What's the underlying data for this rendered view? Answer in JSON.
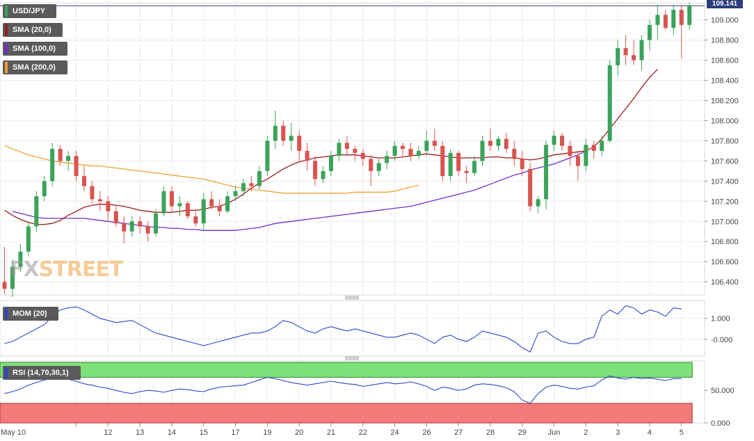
{
  "chart_data": [
    {
      "type": "candlestick",
      "symbol": "USD/JPY",
      "last_price": "109.141",
      "y_ticks": [
        "109.000",
        "108.800",
        "108.600",
        "108.400",
        "108.200",
        "108.000",
        "107.800",
        "107.600",
        "107.400",
        "107.200",
        "107.000",
        "106.800",
        "106.600",
        "106.400"
      ],
      "ylim": [
        106.27,
        109.17
      ],
      "x_tick_labels": [
        "May 10",
        "12",
        "13",
        "14",
        "15",
        "17",
        "19",
        "20",
        "21",
        "22",
        "24",
        "26",
        "27",
        "28",
        "29",
        "Jun",
        "2",
        "3",
        "4",
        "5"
      ],
      "x_tick_positions": [
        9,
        13,
        17,
        21,
        25,
        29,
        33,
        37,
        41,
        45,
        49,
        53,
        57,
        61,
        65,
        69,
        73,
        77,
        81,
        85
      ],
      "indicators": [
        "SMA (20,0)",
        "SMA (100,0)",
        "SMA (200,0)"
      ],
      "colors": {
        "up": "#3aa35a",
        "down": "#d9534f",
        "sma20": "#9b1b1b",
        "sma100": "#6b2fc8",
        "sma200": "#f0a030",
        "last_price_line": "#2c3e7a"
      },
      "candles": [
        [
          106.4,
          106.75,
          106.28,
          106.33
        ],
        [
          106.33,
          106.62,
          106.25,
          106.55
        ],
        [
          106.55,
          106.78,
          106.5,
          106.7
        ],
        [
          106.7,
          107.0,
          106.65,
          106.95
        ],
        [
          106.95,
          107.3,
          106.9,
          107.25
        ],
        [
          107.25,
          107.45,
          107.2,
          107.4
        ],
        [
          107.4,
          107.78,
          107.35,
          107.72
        ],
        [
          107.72,
          107.76,
          107.55,
          107.6
        ],
        [
          107.6,
          107.7,
          107.5,
          107.65
        ],
        [
          107.65,
          107.7,
          107.4,
          107.45
        ],
        [
          107.45,
          107.55,
          107.3,
          107.35
        ],
        [
          107.35,
          107.4,
          107.18,
          107.22
        ],
        [
          107.22,
          107.3,
          107.1,
          107.2
        ],
        [
          107.2,
          107.25,
          107.0,
          107.1
        ],
        [
          107.1,
          107.15,
          106.95,
          106.98
        ],
        [
          106.98,
          107.05,
          106.78,
          106.9
        ],
        [
          106.9,
          107.05,
          106.85,
          107.0
        ],
        [
          107.0,
          107.05,
          106.88,
          106.95
        ],
        [
          106.95,
          107.0,
          106.8,
          106.88
        ],
        [
          106.88,
          107.12,
          106.85,
          107.08
        ],
        [
          107.08,
          107.35,
          107.05,
          107.3
        ],
        [
          107.3,
          107.35,
          107.1,
          107.15
        ],
        [
          107.15,
          107.25,
          107.05,
          107.18
        ],
        [
          107.18,
          107.2,
          107.02,
          107.05
        ],
        [
          107.05,
          107.1,
          106.95,
          106.98
        ],
        [
          106.98,
          107.28,
          106.9,
          107.22
        ],
        [
          107.22,
          107.3,
          107.12,
          107.15
        ],
        [
          107.15,
          107.22,
          107.05,
          107.1
        ],
        [
          107.1,
          107.3,
          107.08,
          107.25
        ],
        [
          107.25,
          107.35,
          107.2,
          107.3
        ],
        [
          107.3,
          107.42,
          107.25,
          107.38
        ],
        [
          107.38,
          107.45,
          107.3,
          107.35
        ],
        [
          107.35,
          107.55,
          107.32,
          107.5
        ],
        [
          107.5,
          107.85,
          107.45,
          107.8
        ],
        [
          107.8,
          108.1,
          107.72,
          107.95
        ],
        [
          107.95,
          108.0,
          107.75,
          107.8
        ],
        [
          107.8,
          107.98,
          107.7,
          107.85
        ],
        [
          107.85,
          107.9,
          107.6,
          107.7
        ],
        [
          107.7,
          107.78,
          107.5,
          107.6
        ],
        [
          107.6,
          107.65,
          107.35,
          107.42
        ],
        [
          107.42,
          107.55,
          107.38,
          107.5
        ],
        [
          107.5,
          107.7,
          107.45,
          107.65
        ],
        [
          107.65,
          107.82,
          107.6,
          107.78
        ],
        [
          107.78,
          107.85,
          107.65,
          107.72
        ],
        [
          107.72,
          107.75,
          107.6,
          107.68
        ],
        [
          107.68,
          107.72,
          107.55,
          107.62
        ],
        [
          107.62,
          107.66,
          107.35,
          107.5
        ],
        [
          107.5,
          107.62,
          107.45,
          107.58
        ],
        [
          107.58,
          107.7,
          107.52,
          107.65
        ],
        [
          107.65,
          107.8,
          107.6,
          107.75
        ],
        [
          107.75,
          107.78,
          107.65,
          107.72
        ],
        [
          107.72,
          107.78,
          107.6,
          107.65
        ],
        [
          107.65,
          107.75,
          107.62,
          107.7
        ],
        [
          107.7,
          107.9,
          107.65,
          107.8
        ],
        [
          107.8,
          107.92,
          107.7,
          107.75
        ],
        [
          107.75,
          107.8,
          107.4,
          107.45
        ],
        [
          107.45,
          107.72,
          107.4,
          107.68
        ],
        [
          107.68,
          107.7,
          107.45,
          107.5
        ],
        [
          107.5,
          107.55,
          107.38,
          107.48
        ],
        [
          107.48,
          107.65,
          107.45,
          107.6
        ],
        [
          107.6,
          107.85,
          107.55,
          107.8
        ],
        [
          107.8,
          107.92,
          107.7,
          107.75
        ],
        [
          107.75,
          107.85,
          107.7,
          107.82
        ],
        [
          107.82,
          107.88,
          107.68,
          107.72
        ],
        [
          107.72,
          107.8,
          107.55,
          107.62
        ],
        [
          107.62,
          107.7,
          107.45,
          107.52
        ],
        [
          107.52,
          107.58,
          107.1,
          107.15
        ],
        [
          107.15,
          107.25,
          107.08,
          107.22
        ],
        [
          107.22,
          107.8,
          107.12,
          107.76
        ],
        [
          107.76,
          107.9,
          107.7,
          107.85
        ],
        [
          107.85,
          107.88,
          107.7,
          107.75
        ],
        [
          107.75,
          107.8,
          107.55,
          107.65
        ],
        [
          107.65,
          107.7,
          107.4,
          107.55
        ],
        [
          107.55,
          107.82,
          107.5,
          107.76
        ],
        [
          107.76,
          107.8,
          107.62,
          107.7
        ],
        [
          107.7,
          107.85,
          107.65,
          107.8
        ],
        [
          107.8,
          108.6,
          107.78,
          108.55
        ],
        [
          108.55,
          108.8,
          108.45,
          108.72
        ],
        [
          108.72,
          108.85,
          108.55,
          108.65
        ],
        [
          108.65,
          108.8,
          108.55,
          108.6
        ],
        [
          108.6,
          108.85,
          108.5,
          108.8
        ],
        [
          108.8,
          109.0,
          108.7,
          108.95
        ],
        [
          108.95,
          109.15,
          108.8,
          109.05
        ],
        [
          109.05,
          109.1,
          108.9,
          108.92
        ],
        [
          108.92,
          109.15,
          108.85,
          109.1
        ],
        [
          109.1,
          109.15,
          108.62,
          108.95
        ],
        [
          108.95,
          109.17,
          108.9,
          109.14
        ]
      ],
      "sma20": [
        107.11,
        107.06,
        107.02,
        106.99,
        106.97,
        106.97,
        106.98,
        107.01,
        107.06,
        107.1,
        107.14,
        107.16,
        107.17,
        107.17,
        107.16,
        107.15,
        107.13,
        107.11,
        107.1,
        107.09,
        107.09,
        107.09,
        107.1,
        107.11,
        107.11,
        107.12,
        107.14,
        107.15,
        107.18,
        107.22,
        107.27,
        107.33,
        107.38,
        107.42,
        107.47,
        107.52,
        107.56,
        107.59,
        107.61,
        107.63,
        107.64,
        107.65,
        107.66,
        107.66,
        107.66,
        107.65,
        107.64,
        107.63,
        107.63,
        107.63,
        107.64,
        107.65,
        107.66,
        107.67,
        107.66,
        107.65,
        107.64,
        107.63,
        107.63,
        107.63,
        107.63,
        107.64,
        107.64,
        107.63,
        107.63,
        107.62,
        107.61,
        107.62,
        107.64,
        107.66,
        107.67,
        107.68,
        107.69,
        107.7,
        107.74,
        107.82,
        107.92,
        108.02,
        108.12,
        108.22,
        108.33,
        108.43,
        108.51
      ],
      "sma100": [
        107.1,
        107.08,
        107.06,
        107.04,
        107.03,
        107.03,
        107.03,
        107.03,
        107.03,
        107.03,
        107.02,
        107.01,
        107.0,
        106.99,
        106.98,
        106.97,
        106.96,
        106.95,
        106.94,
        106.94,
        106.93,
        106.93,
        106.92,
        106.92,
        106.91,
        106.91,
        106.91,
        106.91,
        106.91,
        106.92,
        106.93,
        106.94,
        106.96,
        106.98,
        106.99,
        107.0,
        107.01,
        107.02,
        107.03,
        107.04,
        107.05,
        107.06,
        107.07,
        107.08,
        107.09,
        107.1,
        107.11,
        107.12,
        107.13,
        107.14,
        107.15,
        107.17,
        107.19,
        107.21,
        107.23,
        107.25,
        107.27,
        107.29,
        107.31,
        107.34,
        107.37,
        107.4,
        107.43,
        107.46,
        107.48,
        107.51,
        107.53,
        107.55,
        107.57,
        107.6,
        107.63,
        107.66,
        107.7
      ],
      "sma200": [
        107.75,
        107.72,
        107.69,
        107.66,
        107.64,
        107.62,
        107.6,
        107.59,
        107.58,
        107.57,
        107.56,
        107.55,
        107.55,
        107.54,
        107.53,
        107.52,
        107.51,
        107.5,
        107.49,
        107.48,
        107.47,
        107.46,
        107.45,
        107.44,
        107.43,
        107.42,
        107.4,
        107.38,
        107.36,
        107.34,
        107.33,
        107.32,
        107.31,
        107.3,
        107.29,
        107.28,
        107.28,
        107.28,
        107.28,
        107.28,
        107.28,
        107.28,
        107.28,
        107.28,
        107.29,
        107.29,
        107.29,
        107.29,
        107.29,
        107.3,
        107.32,
        107.34,
        107.36
      ]
    },
    {
      "type": "line",
      "title": "MOM (20)",
      "y_ticks": [
        "1.000",
        "-0.000"
      ],
      "ylim": [
        -0.8,
        1.85
      ],
      "values": [
        -0.2,
        -0.1,
        0.1,
        0.3,
        0.5,
        0.7,
        1.1,
        1.4,
        1.5,
        1.55,
        1.4,
        1.2,
        1.0,
        0.9,
        0.8,
        0.85,
        0.9,
        0.7,
        0.5,
        0.3,
        0.2,
        0.1,
        0.0,
        -0.1,
        -0.2,
        -0.3,
        -0.2,
        -0.1,
        0.0,
        0.1,
        0.2,
        0.3,
        0.3,
        0.4,
        0.6,
        0.9,
        0.8,
        0.6,
        0.4,
        0.3,
        0.5,
        0.6,
        0.5,
        0.4,
        0.5,
        0.4,
        0.3,
        0.2,
        0.1,
        0.1,
        0.2,
        0.3,
        0.2,
        0.0,
        -0.2,
        0.1,
        0.2,
        0.0,
        -0.1,
        0.1,
        0.4,
        0.3,
        0.2,
        0.1,
        -0.1,
        -0.4,
        -0.6,
        0.3,
        0.4,
        0.1,
        -0.1,
        -0.2,
        -0.2,
        0.0,
        0.1,
        1.1,
        1.4,
        1.2,
        1.6,
        1.5,
        1.2,
        1.4,
        1.3,
        1.1,
        1.5,
        1.45
      ]
    },
    {
      "type": "line",
      "title": "RSI (14,70,30,1)",
      "y_ticks": [
        "50.000",
        "0.000"
      ],
      "ylim": [
        0,
        95
      ],
      "zones": {
        "overbought": 70,
        "oversold": 30
      },
      "values": [
        45,
        48,
        52,
        58,
        62,
        66,
        68,
        70,
        67,
        64,
        60,
        58,
        55,
        53,
        50,
        47,
        45,
        48,
        50,
        49,
        47,
        50,
        52,
        51,
        49,
        48,
        52,
        55,
        56,
        57,
        58,
        62,
        66,
        70,
        68,
        65,
        62,
        60,
        58,
        60,
        62,
        64,
        62,
        60,
        59,
        56,
        58,
        60,
        62,
        60,
        61,
        63,
        60,
        56,
        50,
        55,
        53,
        50,
        52,
        58,
        60,
        59,
        57,
        54,
        48,
        35,
        30,
        45,
        55,
        58,
        56,
        53,
        52,
        55,
        57,
        66,
        72,
        69,
        67,
        70,
        68,
        69,
        67,
        65,
        68,
        68
      ]
    }
  ],
  "watermark": {
    "fx": "FX",
    "street": "STREET"
  }
}
